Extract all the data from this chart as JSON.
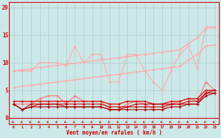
{
  "x": [
    0,
    1,
    2,
    3,
    4,
    5,
    6,
    7,
    8,
    9,
    10,
    11,
    12,
    13,
    14,
    15,
    16,
    17,
    18,
    19,
    20,
    21,
    22,
    23
  ],
  "background_color": "#cce8e8",
  "grid_color": "#aacccc",
  "xlabel": "Vent moyen/en rafales ( km/h )",
  "xlabel_color": "#cc0000",
  "tick_color": "#cc0000",
  "ylabel_ticks": [
    0,
    5,
    10,
    15,
    20
  ],
  "ylim": [
    -1.2,
    21
  ],
  "xlim": [
    -0.5,
    23.5
  ],
  "line_diag1_color": "#ffaaaa",
  "line_diag1_y": [
    8.5,
    8.7,
    8.9,
    9.1,
    9.3,
    9.5,
    9.7,
    9.9,
    10.1,
    10.3,
    10.5,
    10.7,
    10.9,
    11.1,
    11.3,
    11.5,
    11.7,
    11.9,
    12.1,
    12.3,
    13.5,
    14.5,
    16.2,
    16.3
  ],
  "line_diag2_color": "#ffaaaa",
  "line_diag2_y": [
    5.5,
    5.7,
    5.9,
    6.1,
    6.3,
    6.5,
    6.7,
    6.9,
    7.1,
    7.3,
    7.5,
    7.7,
    7.9,
    8.1,
    8.3,
    8.5,
    8.7,
    8.9,
    9.1,
    9.3,
    10.5,
    11.5,
    13.0,
    13.2
  ],
  "line_zigzag_color": "#ffaaaa",
  "line_zigzag_y": [
    8.5,
    8.5,
    8.5,
    10.0,
    10.0,
    10.0,
    9.5,
    13.0,
    10.0,
    11.5,
    11.5,
    6.5,
    6.5,
    11.5,
    11.5,
    8.5,
    6.5,
    5.0,
    8.5,
    11.5,
    13.0,
    9.0,
    16.5,
    16.5
  ],
  "line_med1_color": "#ff7777",
  "line_med1_y": [
    2.5,
    2.5,
    2.5,
    3.5,
    4.0,
    4.0,
    2.5,
    4.0,
    3.0,
    3.0,
    3.0,
    1.5,
    1.5,
    2.5,
    3.0,
    2.5,
    1.5,
    1.5,
    2.5,
    3.0,
    3.5,
    3.0,
    6.5,
    5.0
  ],
  "line_red1_color": "#dd1111",
  "line_red1_y": [
    3.0,
    3.0,
    3.0,
    3.0,
    3.0,
    3.0,
    3.0,
    3.0,
    3.0,
    3.0,
    3.0,
    2.5,
    2.5,
    3.0,
    3.0,
    3.0,
    2.5,
    2.5,
    3.0,
    3.0,
    3.5,
    3.5,
    5.0,
    5.0
  ],
  "line_red2_color": "#cc0000",
  "line_red2_y": [
    2.5,
    1.5,
    2.5,
    2.5,
    2.5,
    2.5,
    2.5,
    2.5,
    2.5,
    2.5,
    2.5,
    2.0,
    2.0,
    2.0,
    2.5,
    2.5,
    2.5,
    2.5,
    2.5,
    2.5,
    3.0,
    3.0,
    4.5,
    4.5
  ],
  "line_red3_color": "#cc0000",
  "line_red3_y": [
    2.5,
    1.5,
    2.0,
    2.5,
    2.5,
    2.5,
    2.0,
    2.0,
    2.0,
    2.0,
    2.0,
    1.5,
    1.5,
    2.0,
    2.0,
    2.0,
    2.0,
    2.0,
    2.5,
    2.5,
    2.5,
    2.5,
    4.5,
    5.0
  ],
  "line_red4_color": "#aa0000",
  "line_red4_y": [
    2.5,
    1.5,
    2.0,
    2.0,
    2.0,
    2.0,
    2.0,
    2.0,
    2.0,
    2.0,
    2.0,
    1.5,
    1.5,
    1.5,
    1.5,
    1.5,
    1.5,
    1.5,
    2.0,
    2.0,
    2.5,
    2.5,
    4.0,
    4.5
  ],
  "arrow_color": "#cc0000",
  "spine_color": "#cc0000"
}
